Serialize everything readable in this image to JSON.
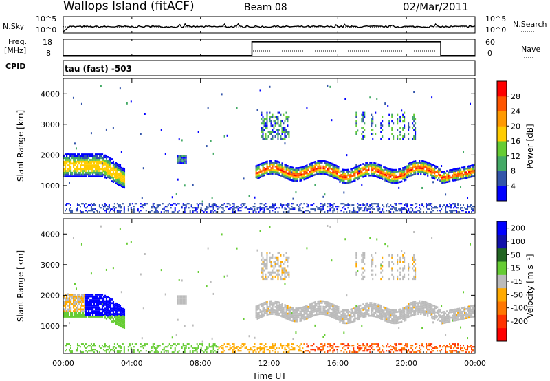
{
  "header": {
    "station": "Wallops Island (fitACF)",
    "beam": "Beam 08",
    "date": "02/Mar/2011"
  },
  "side_labels": {
    "nsky": "N.Sky",
    "freq_top": "Freq.",
    "freq_unit": "[MHz]",
    "cpid": "CPID",
    "nsearch": "N.Search",
    "nave": "Nave",
    "nsky_hi": "10^5",
    "nsky_lo": "10^0",
    "nsearch_hi": "10^5",
    "nsearch_lo": "10^0",
    "freq_hi": "18",
    "freq_lo": "8",
    "nave_hi": "60",
    "nave_lo": "0"
  },
  "cpid_text": "tau (fast) -503",
  "colors": {
    "power_scale": [
      "#0000ff",
      "#3355aa",
      "#44aa66",
      "#66cc33",
      "#ffcc00",
      "#ff9900",
      "#ff5500",
      "#ff0000"
    ],
    "velocity_scale": [
      "#0000ff",
      "#1111aa",
      "#226622",
      "#66cc33",
      "#bbbbbb",
      "#ffaa00",
      "#ff7700",
      "#ff3300",
      "#ff0000"
    ]
  },
  "chart_data": [
    {
      "type": "line",
      "name": "noise-panel",
      "series": [
        {
          "name": "N.Sky"
        },
        {
          "name": "N.Search"
        }
      ]
    },
    {
      "type": "line",
      "name": "frequency-panel",
      "series": [
        {
          "name": "Freq.",
          "x": [
            "00:00",
            "11:00",
            "11:00",
            "22:00",
            "22:00",
            "24:00"
          ],
          "y": [
            8.5,
            8.5,
            16.5,
            16.5,
            8.5,
            8.5
          ]
        },
        {
          "name": "Nave"
        }
      ]
    },
    {
      "type": "heatmap",
      "name": "power-panel",
      "ylabel": "Slant Range [km]",
      "ylim": [
        100,
        4500
      ],
      "yticks": [
        "1000",
        "2000",
        "3000",
        "4000"
      ],
      "colorbar_label": "Power [dB]",
      "colorbar_ticks": [
        "4",
        "8",
        "12",
        "16",
        "20",
        "24",
        "28"
      ],
      "colorbar_range": [
        0,
        32
      ]
    },
    {
      "type": "heatmap",
      "name": "velocity-panel",
      "ylabel": "Slant Range [km]",
      "ylim": [
        100,
        4500
      ],
      "yticks": [
        "1000",
        "2000",
        "3000",
        "4000"
      ],
      "colorbar_label": "Velocity [m s⁻¹]",
      "colorbar_ticks": [
        "200",
        "100",
        "50",
        "15",
        "-15",
        "-50",
        "-100",
        "-200"
      ],
      "xlabel": "Time UT",
      "xticks": [
        "00:00",
        "04:00",
        "08:00",
        "12:00",
        "16:00",
        "20:00",
        "00:00"
      ],
      "xlim_hours": [
        0,
        24
      ]
    }
  ]
}
